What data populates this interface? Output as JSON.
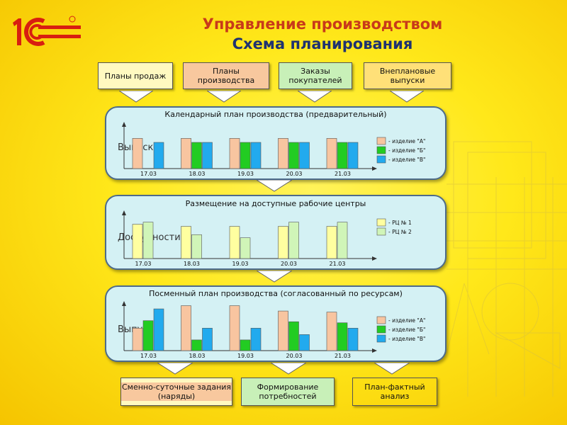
{
  "header": {
    "logo_text": "1С",
    "title": "Управление производством",
    "subtitle": "Схема планирования"
  },
  "inputs": [
    {
      "label": "Планы продаж",
      "color": "#fff9c0"
    },
    {
      "label": "Планы производства",
      "color": "#f8c89e"
    },
    {
      "label": "Заказы покупателей",
      "color": "#c8f0b8"
    },
    {
      "label": "Внеплановые выпуски",
      "color": "#ffe078"
    }
  ],
  "colors": {
    "orange": "#f8c5a0",
    "green": "#22cc22",
    "blue": "#22aaee",
    "rc_yellow": "#ffffa0",
    "rc_green": "#d0f5b8",
    "panel_bg": "#d4f1f4",
    "panel_border": "#4d6b8a"
  },
  "panels": [
    {
      "title": "Календарный план производства (предварительный)",
      "axis_label": "Выпуски",
      "chart_data": {
        "type": "bar",
        "categories": [
          "17.03",
          "18.03",
          "19.03",
          "20.03",
          "21.03"
        ],
        "series": [
          {
            "name": "- изделие \"А\"",
            "color_key": "orange",
            "values": [
              3,
              3,
              3,
              3,
              3
            ]
          },
          {
            "name": "- изделие \"Б\"",
            "color_key": "green",
            "values": [
              0,
              2.6,
              2.6,
              2.6,
              2.6
            ]
          },
          {
            "name": "- изделие \"В\"",
            "color_key": "blue",
            "values": [
              2.6,
              2.6,
              2.6,
              2.6,
              2.6
            ]
          }
        ],
        "ylim": [
          0,
          4.5
        ]
      }
    },
    {
      "title": "Размещение на доступные рабочие центры",
      "axis_label": "Доступности",
      "chart_data": {
        "type": "bar",
        "categories": [
          "17.03",
          "18.03",
          "19.03",
          "20.03",
          "21.03"
        ],
        "series": [
          {
            "name": "- РЦ № 1",
            "color_key": "rc_yellow",
            "values": [
              3.3,
              3.1,
              3.1,
              3.1,
              3.1
            ]
          },
          {
            "name": "- РЦ № 2",
            "color_key": "rc_green",
            "values": [
              3.5,
              2.3,
              2.0,
              3.5,
              3.5
            ]
          }
        ],
        "ylim": [
          0,
          4.5
        ]
      }
    },
    {
      "title": "Посменный план производства (согласованный по ресурсам)",
      "axis_label": "Выпуски",
      "chart_data": {
        "type": "bar",
        "categories": [
          "17.03",
          "18.03",
          "19.03",
          "20.03",
          "21.03"
        ],
        "series": [
          {
            "name": "- изделие \"А\"",
            "color_key": "orange",
            "values": [
              2.1,
              4.2,
              4.2,
              3.7,
              3.6
            ]
          },
          {
            "name": "- изделие \"Б\"",
            "color_key": "green",
            "values": [
              2.8,
              1.0,
              1.0,
              2.7,
              2.6
            ]
          },
          {
            "name": "- изделие \"В\"",
            "color_key": "blue",
            "values": [
              3.9,
              2.1,
              2.1,
              1.5,
              2.1
            ]
          }
        ],
        "ylim": [
          0,
          4.5
        ]
      }
    }
  ],
  "outputs": [
    {
      "label": "Сменно-суточные задания (наряды)",
      "color": "#fff9c0"
    },
    {
      "label": "Формирование потребностей",
      "color": "#f8c89e"
    },
    {
      "label": "План-фактный анализ",
      "color": "#c8f0b8"
    }
  ]
}
